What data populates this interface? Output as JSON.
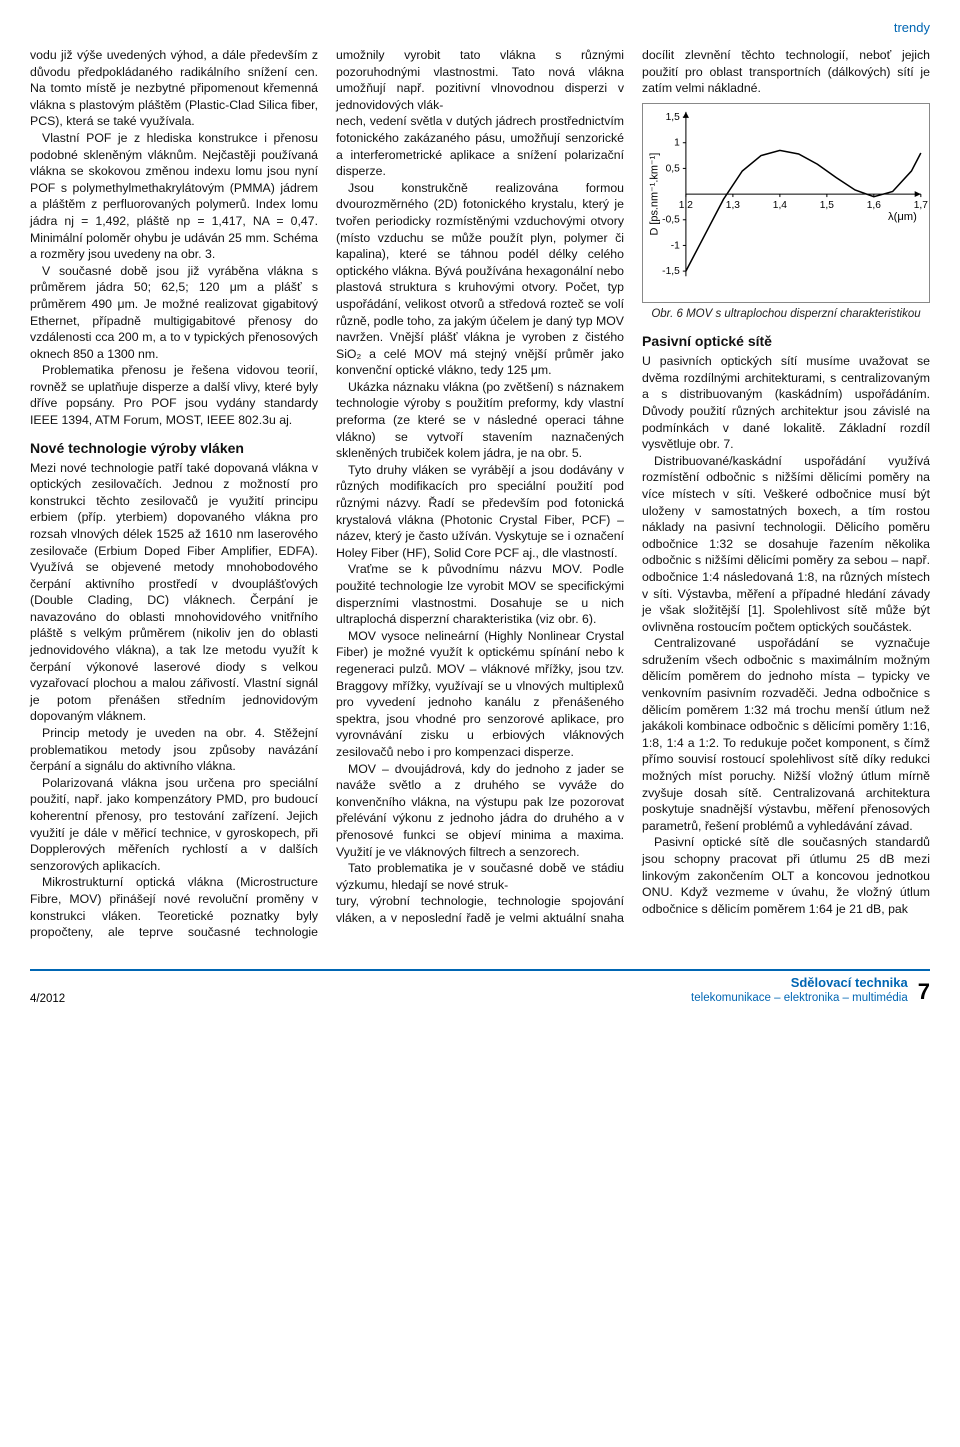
{
  "header": {
    "section": "trendy"
  },
  "col1": {
    "p1": "vodu již výše uvedených výhod, a dále především z důvodu předpokládaného radikálního snížení cen. Na tomto místě je nezbytné připomenout křemenná vlákna s plastovým pláštěm (Plastic-Clad Silica fiber, PCS), která se také využívala.",
    "p2": "Vlastní POF je z hlediska konstrukce i přenosu podobné skleněným vláknům. Nejčastěji používaná vlákna se skokovou změnou indexu lomu jsou nyní POF s polymethylmethakrylátovým (PMMA) jádrem a pláštěm z perfluorovaných polymerů. Index lomu jádra nj = 1,492, pláště np = 1,417, NA = 0,47. Minimální poloměr ohybu je udáván 25 mm. Schéma a rozměry jsou uvedeny na obr. 3.",
    "p3": "V současné době jsou již vyráběna vlákna s průměrem jádra 50; 62,5; 120 μm a plášť s průměrem 490 μm. Je možné realizovat gigabitový Ethernet, případně multigigabitové přenosy do vzdálenosti cca 200 m, a to v typických přenosových oknech 850 a 1300 nm.",
    "p4": "Problematika přenosu je řešena vidovou teorií, rovněž se uplatňuje disperze a další vlivy, které byly dříve popsány. Pro POF jsou vydány standardy IEEE 1394, ATM Forum, MOST, IEEE 802.3u aj.",
    "h1": "Nové technologie výroby vláken",
    "p5": "Mezi nové technologie patří také dopovaná vlákna v optických zesilovačích. Jednou z možností pro konstrukci těchto zesilovačů je využití principu erbiem (příp. yterbiem) dopovaného vlákna pro rozsah vlnových délek 1525 až 1610 nm laserového zesilovače (Erbium Doped Fiber Amplifier, EDFA). Využívá se objevené metody mnohobodového čerpání aktivního prostředí v dvouplášťových (Double Clading, DC) vláknech. Čerpání je navazováno do oblasti mnohovidového vnitřního pláště s velkým průměrem (nikoliv jen do oblasti jednovidového vlákna), a tak lze metodu využít k čerpání výkonové laserové diody s velkou vyzařovací plochou a malou zářivostí. Vlastní signál je potom přenášen středním jednovidovým dopovaným vláknem.",
    "p6": "Princip metody je uveden na obr. 4. Stěžejní problematikou metody jsou způsoby navázání čerpání a signálu do aktivního vlákna.",
    "p7": "Polarizovaná vlákna jsou určena pro speciální použití, např. jako kompenzátory PMD, pro budoucí koherentní přenosy, pro testování zařízení. Jejich využití je dále v měřicí technice, v gyroskopech, při Dopplerových měřeních rychlostí a v dalších senzorových aplikacích.",
    "p8": "Mikrostrukturní optická vlákna (Microstructure Fibre, MOV) přinášejí nové revoluční proměny v konstrukci vláken. Teoretické poznatky byly propočteny, ale teprve současné technologie umožnily vyrobit tato vlákna s různými pozoruhodnými vlastnostmi. Tato nová vlákna umožňují např. pozitivní vlnovodnou disperzi v jednovidových vlák-"
  },
  "col2": {
    "p1": "nech, vedení světla v dutých jádrech prostřednictvím fotonického zakázaného pásu, umožňují senzorické a interferometrické aplikace a snížení polarizační disperze.",
    "p2": "Jsou konstrukčně realizována formou dvourozměrného (2D) fotonického krystalu, který je tvořen periodicky rozmístěnými vzduchovými otvory (místo vzduchu se může použít plyn, polymer či kapalina), které se táhnou podél délky celého optického vlákna. Bývá používána hexagonální nebo plastová struktura s kruhovými otvory. Počet, typ uspořádání, velikost otvorů a středová rozteč se volí různě, podle toho, za jakým účelem je daný typ MOV navržen. Vnější plášť vlákna je vyroben z čistého SiO₂ a celé MOV má stejný vnější průměr jako konvenční optické vlákno, tedy 125 μm.",
    "p3": "Ukázka náznaku vlákna (po zvětšení) s náznakem technologie výroby s použitím preformy, kdy vlastní preforma (ze které se v následné operaci táhne vlákno) se vytvoří stavením naznačených skleněných trubiček kolem jádra, je na obr. 5.",
    "p4": "Tyto druhy vláken se vyrábějí a jsou dodávány v různých modifikacích pro speciální použití pod různými názvy. Řadí se především pod fotonická krystalová vlákna (Photonic Crystal Fiber, PCF) – název, který je často užíván. Vyskytuje se i označení Holey Fiber (HF), Solid Core PCF aj., dle vlastností.",
    "p5": "Vraťme se k původnímu názvu MOV. Podle použité technologie lze vyrobit MOV se specifickými disperzními vlastnostmi. Dosahuje se u nich ultraplochá disperzní charakteristika (viz obr. 6).",
    "p6": "MOV vysoce nelineární (Highly Nonlinear Crystal Fiber) je možné využít k optickému spínání nebo k regeneraci pulzů. MOV – vláknové mřížky, jsou tzv. Braggovy mřížky, využívají se u vlnových multiplexů pro vyvedení jednoho kanálu z přenášeného spektra, jsou vhodné pro senzorové aplikace, pro vyrovnávání zisku u erbiových vláknových zesilovačů nebo i pro kompenzaci disperze.",
    "p7": "MOV – dvoujádrová, kdy do jednoho z jader se naváže světlo a z druhého se vyváže do konvenčního vlákna, na výstupu pak lze pozorovat přelévání výkonu z jednoho jádra do druhého a v přenosové funkci se objeví minima a maxima. Využití je ve vláknových filtrech a senzorech.",
    "p8": "Tato problematika je v současné době ve stádiu výzkumu, hledají se nové struk-"
  },
  "col3": {
    "p1": "tury, výrobní technologie, technologie spojování vláken, a v neposlední řadě je velmi aktuální snaha docílit zlevnění těchto technologií, neboť jejich použití pro oblast transportních (dálkových) sítí je zatím velmi nákladné.",
    "caption": "Obr. 6 MOV s ultraplochou disperzní charakteristikou",
    "h1": "Pasivní optické sítě",
    "p2": "U pasivních optických sítí musíme uvažovat se dvěma rozdílnými architekturami, s centralizovaným a s distribuovaným (kaskádním) uspořádáním. Důvody použití různých architektur jsou závislé na podmínkách v dané lokalitě. Základní rozdíl vysvětluje obr. 7.",
    "p3": "Distribuované/kaskádní uspořádání využívá rozmístění odbočnic s nižšími dělicími poměry na více místech v síti. Veškeré odbočnice musí být uloženy v samostatných boxech, a tím rostou náklady na pasivní technologii. Dělicího poměru odbočnice 1:32 se dosahuje řazením několika odbočnic s nižšími dělicími poměry za sebou – např. odbočnice 1:4 následovaná 1:8, na různých místech v síti. Výstavba, měření a případné hledání závady je však složitější [1]. Spolehlivost sítě může být ovlivněna rostoucím počtem optických součástek.",
    "p4": "Centralizované uspořádání se vyznačuje sdružením všech odbočnic s maximálním možným dělicím poměrem do jednoho místa – typicky ve venkovním pasivním rozvaděči. Jedna odbočnice s dělicím poměrem 1:32 má trochu menší útlum než jakákoli kombinace odbočnic s dělicími poměry 1:16, 1:8, 1:4 a 1:2. To redukuje počet komponent, s čímž přímo souvisí rostoucí spolehlivost sítě díky redukci možných míst poruchy. Nižší vložný útlum mírně zvyšuje dosah sítě. Centralizovaná architektura poskytuje snadnější výstavbu, měření přenosových parametrů, řešení problémů a vyhledávání závad.",
    "p5": "Pasivní optické sítě dle současných standardů jsou schopny pracovat při útlumu 25 dB mezi linkovým zakončením OLT a koncovou jednotkou ONU. Když vezmeme v úvahu, že vložný útlum odbočnice s dělicím poměrem 1:64 je 21 dB, pak"
  },
  "chart": {
    "type": "line",
    "xlabel": "λ(μm)",
    "ylabel": "D [ps.nm⁻¹.km⁻¹]",
    "xlim": [
      1.2,
      1.7
    ],
    "ylim": [
      -1.6,
      1.6
    ],
    "xticks": [
      1.2,
      1.3,
      1.4,
      1.5,
      1.6,
      1.7
    ],
    "yticks": [
      -1.5,
      -1,
      -0.5,
      0.5,
      1,
      1.5
    ],
    "line_color": "#000000",
    "line_width": 1.5,
    "background_color": "#ffffff",
    "grid_color": "#000000",
    "tick_fontsize": 10,
    "label_fontsize": 11,
    "data_x": [
      1.2,
      1.24,
      1.28,
      1.32,
      1.36,
      1.4,
      1.44,
      1.48,
      1.52,
      1.56,
      1.6,
      1.64,
      1.68,
      1.7
    ],
    "data_y": [
      -1.5,
      -0.8,
      -0.1,
      0.45,
      0.75,
      0.85,
      0.78,
      0.58,
      0.32,
      0.08,
      -0.05,
      0.05,
      0.45,
      0.8
    ]
  },
  "footer": {
    "issue": "4/2012",
    "mag_title": "Sdělovací technika",
    "mag_sub": "telekomunikace – elektronika – multimédia",
    "page": "7"
  }
}
